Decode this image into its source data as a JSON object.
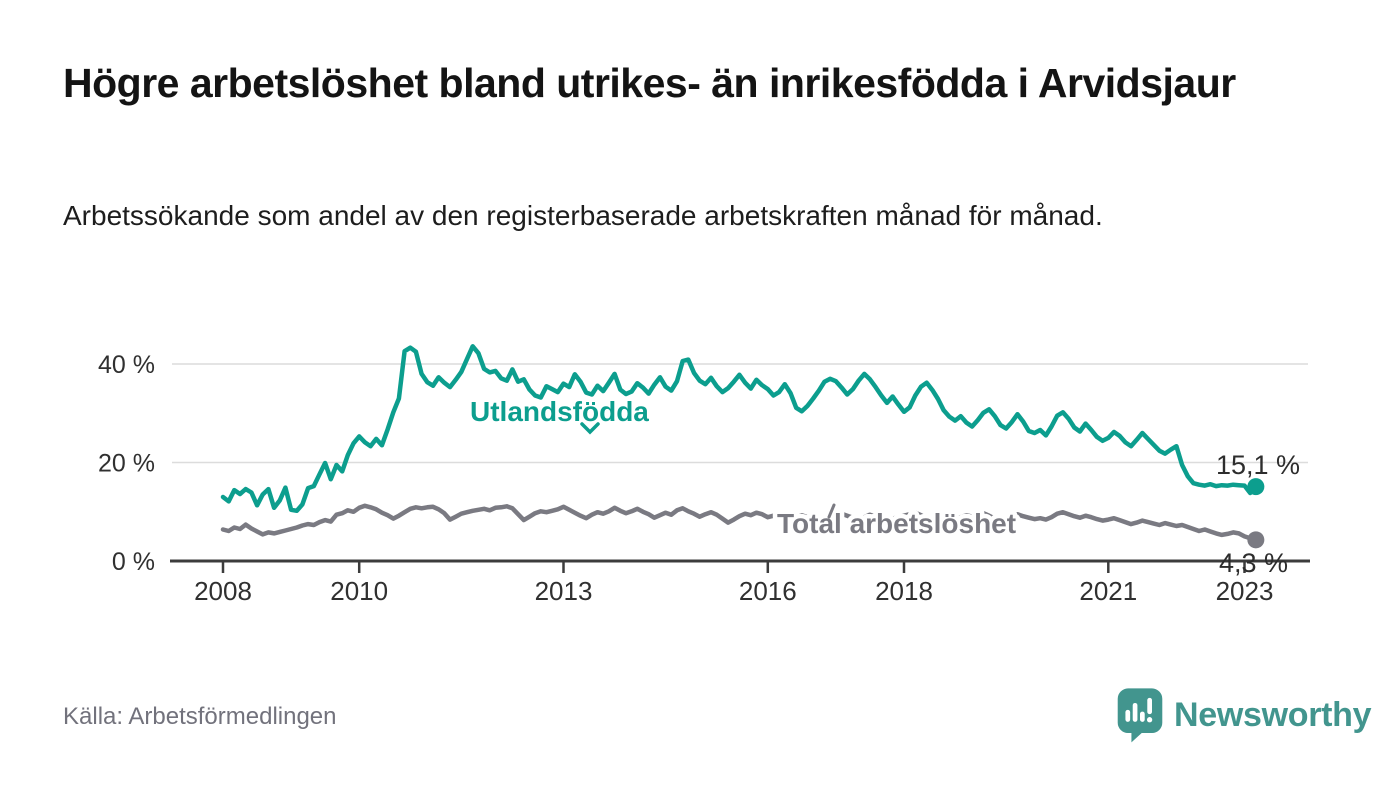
{
  "header": {
    "title": "Högre arbetslöshet bland utrikes- än inrikesfödda i Arvidsjaur",
    "subtitle": "Arbetssökande som andel av den registerbaserade arbetskraften månad för månad."
  },
  "chart_data": {
    "type": "line",
    "unit": "%",
    "x_start": "2008-01",
    "x_end": "2023-03",
    "x_interval": "monthly",
    "ylim": [
      0,
      45
    ],
    "grid": true,
    "yticks": [
      {
        "value": 0,
        "label": "0 %"
      },
      {
        "value": 20,
        "label": "20 %"
      },
      {
        "value": 40,
        "label": "40 %"
      }
    ],
    "xticks": [
      {
        "year": 2008,
        "label": "2008"
      },
      {
        "year": 2010,
        "label": "2010"
      },
      {
        "year": 2013,
        "label": "2013"
      },
      {
        "year": 2016,
        "label": "2016"
      },
      {
        "year": 2018,
        "label": "2018"
      },
      {
        "year": 2021,
        "label": "2021"
      },
      {
        "year": 2023,
        "label": "2023"
      }
    ],
    "series": [
      {
        "name": "Total arbetslöshet",
        "color": "#7a7a82",
        "end_label": "4,3 %",
        "end_value": 4.3,
        "values": [
          6.4,
          6.1,
          6.8,
          6.5,
          7.4,
          6.6,
          6.0,
          5.4,
          5.8,
          5.6,
          5.9,
          6.2,
          6.5,
          6.8,
          7.2,
          7.5,
          7.3,
          7.9,
          8.3,
          8.0,
          9.4,
          9.7,
          10.3,
          10.0,
          10.8,
          11.2,
          10.9,
          10.5,
          9.8,
          9.3,
          8.6,
          9.2,
          9.9,
          10.6,
          10.9,
          10.7,
          10.9,
          11.0,
          10.5,
          9.7,
          8.4,
          9.0,
          9.6,
          9.9,
          10.2,
          10.4,
          10.6,
          10.3,
          10.8,
          10.9,
          11.1,
          10.7,
          9.5,
          8.3,
          9.0,
          9.7,
          10.1,
          9.9,
          10.2,
          10.5,
          11.0,
          10.4,
          9.8,
          9.2,
          8.7,
          9.4,
          9.9,
          9.6,
          10.1,
          10.8,
          10.2,
          9.7,
          10.1,
          10.6,
          10.0,
          9.5,
          8.8,
          9.3,
          9.8,
          9.4,
          10.3,
          10.7,
          10.1,
          9.6,
          9.0,
          9.5,
          9.9,
          9.4,
          8.6,
          7.8,
          8.4,
          9.1,
          9.6,
          9.3,
          9.8,
          9.5,
          8.9,
          9.2,
          9.6,
          9.1,
          8.5,
          8.8,
          9.3,
          8.9,
          8.6,
          8.3,
          8.7,
          9.0,
          9.3,
          9.6,
          9.2,
          8.8,
          8.4,
          8.9,
          9.4,
          9.0,
          8.5,
          8.2,
          8.6,
          8.9,
          9.2,
          9.5,
          9.8,
          9.3,
          8.7,
          8.3,
          8.8,
          9.2,
          8.8,
          8.4,
          8.9,
          9.3,
          9.0,
          9.4,
          9.7,
          9.2,
          8.6,
          8.2,
          8.7,
          9.0,
          9.5,
          9.1,
          8.8,
          8.5,
          8.7,
          8.4,
          8.9,
          9.6,
          9.9,
          9.5,
          9.1,
          8.8,
          9.2,
          8.9,
          8.5,
          8.2,
          8.4,
          8.7,
          8.3,
          7.9,
          7.5,
          7.8,
          8.2,
          7.9,
          7.6,
          7.3,
          7.7,
          7.4,
          7.1,
          7.3,
          6.9,
          6.5,
          6.1,
          6.4,
          6.0,
          5.6,
          5.3,
          5.5,
          5.8,
          5.6,
          5.0,
          4.6,
          4.3
        ]
      },
      {
        "name": "Utlandsfödda",
        "color": "#0c9e8e",
        "end_label": "15,1 %",
        "end_value": 15.1,
        "values": [
          13.0,
          12.1,
          14.4,
          13.6,
          14.6,
          13.9,
          11.3,
          13.5,
          14.6,
          10.8,
          12.3,
          14.9,
          10.4,
          10.2,
          11.5,
          14.8,
          15.2,
          17.6,
          19.9,
          16.6,
          19.5,
          18.2,
          21.5,
          23.9,
          25.3,
          24.1,
          23.3,
          24.8,
          23.5,
          26.7,
          30.2,
          33.0,
          42.6,
          43.3,
          42.5,
          38.0,
          36.3,
          35.6,
          37.3,
          36.2,
          35.3,
          36.8,
          38.4,
          41.0,
          43.6,
          42.2,
          39.0,
          38.3,
          38.6,
          37.1,
          36.6,
          38.9,
          36.4,
          36.9,
          34.8,
          33.6,
          33.2,
          35.5,
          34.9,
          34.3,
          36.0,
          35.3,
          37.9,
          36.4,
          34.2,
          33.8,
          35.6,
          34.5,
          36.2,
          38.0,
          34.8,
          33.9,
          34.4,
          36.1,
          35.2,
          34.0,
          35.8,
          37.3,
          35.4,
          34.6,
          36.5,
          40.6,
          40.9,
          38.2,
          36.6,
          35.9,
          37.2,
          35.5,
          34.3,
          35.1,
          36.4,
          37.8,
          36.2,
          35.0,
          36.8,
          35.7,
          34.9,
          33.6,
          34.3,
          35.9,
          34.1,
          31.1,
          30.4,
          31.5,
          33.0,
          34.6,
          36.4,
          37.0,
          36.5,
          35.2,
          33.8,
          34.9,
          36.6,
          38.0,
          36.9,
          35.3,
          33.6,
          32.1,
          33.4,
          31.8,
          30.3,
          31.2,
          33.6,
          35.4,
          36.2,
          34.7,
          32.9,
          30.6,
          29.3,
          28.5,
          29.4,
          28.1,
          27.3,
          28.6,
          30.1,
          30.8,
          29.4,
          27.6,
          26.9,
          28.2,
          29.8,
          28.3,
          26.4,
          26.0,
          26.6,
          25.5,
          27.3,
          29.5,
          30.2,
          28.9,
          27.1,
          26.3,
          27.9,
          26.6,
          25.2,
          24.4,
          25.0,
          26.2,
          25.4,
          24.1,
          23.3,
          24.6,
          26.0,
          24.8,
          23.6,
          22.4,
          21.8,
          22.6,
          23.3,
          19.5,
          17.2,
          15.8,
          15.5,
          15.3,
          15.6,
          15.2,
          15.4,
          15.3,
          15.5,
          15.4,
          15.3,
          13.8,
          15.1
        ]
      }
    ],
    "series_labels": [
      {
        "text": "Utlandsfödda",
        "series": 1,
        "pointer": "down-caret"
      },
      {
        "text": "Total arbetslöshet",
        "series": 0,
        "pointer": "up-tick"
      }
    ],
    "legend_position": "inline-labels"
  },
  "footer": {
    "source": "Källa: Arbetsförmedlingen",
    "brand": "Newsworthy",
    "brand_color": "#42958e",
    "logo_icon": "bar-chart-speech-bubble"
  },
  "colors": {
    "accent_teal": "#0c9e8e",
    "neutral_gray": "#7a7a82",
    "axis": "#3c3c3c",
    "gridline": "#dcdcdc",
    "text_dark": "#2d2d2d"
  }
}
